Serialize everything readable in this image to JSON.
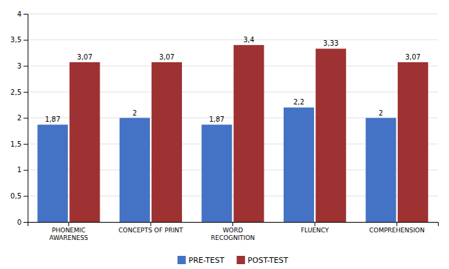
{
  "chart_data": {
    "type": "bar",
    "categories": [
      "PHONEMIC\nAWARENESS",
      "CONCEPTS OF PRINT",
      "WORD\nRECOGNITION",
      "FLUENCY",
      "COMPREHENSION"
    ],
    "series": [
      {
        "name": "PRE-TEST",
        "color": "#4472C4",
        "values": [
          1.87,
          2,
          1.87,
          2.2,
          2
        ],
        "value_labels": [
          "1,87",
          "2",
          "1,87",
          "2,2",
          "2"
        ]
      },
      {
        "name": "POST-TEST",
        "color": "#9E3132",
        "values": [
          3.07,
          3.07,
          3.4,
          3.33,
          3.07
        ],
        "value_labels": [
          "3,07",
          "3,07",
          "3,4",
          "3,33",
          "3,07"
        ]
      }
    ],
    "ylim": [
      0,
      4
    ],
    "yticks": [
      0,
      {
        "value": 0.5,
        "label": "0,5"
      },
      1,
      {
        "value": 1.5,
        "label": "1,5"
      },
      2,
      {
        "value": 2.5,
        "label": "2,5"
      },
      3,
      {
        "value": 3.5,
        "label": "3,5"
      },
      4
    ],
    "grid": true,
    "legend": "bottom",
    "data_labels": true
  }
}
